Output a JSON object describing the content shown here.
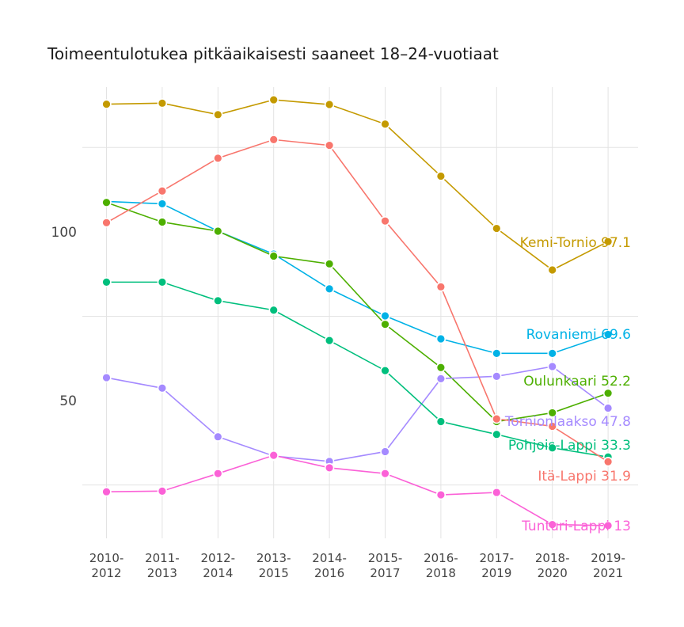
{
  "chart_data": {
    "type": "line",
    "title": "Toimeentulotukea pitkäaikaisesti saaneet 18–24-vuotiaat",
    "xlabel": "",
    "ylabel": "",
    "categories": [
      "2010-2012",
      "2011-2013",
      "2012-2014",
      "2013-2015",
      "2014-2016",
      "2015-2017",
      "2016-2018",
      "2017-2019",
      "2018-2020",
      "2019-2021"
    ],
    "x_tick_labels": [
      [
        "2010-",
        "2012"
      ],
      [
        "2011-",
        "2013"
      ],
      [
        "2012-",
        "2014"
      ],
      [
        "2013-",
        "2015"
      ],
      [
        "2014-",
        "2016"
      ],
      [
        "2015-",
        "2017"
      ],
      [
        "2016-",
        "2018"
      ],
      [
        "2017-",
        "2019"
      ],
      [
        "2018-",
        "2020"
      ],
      [
        "2019-2021"
      ]
    ],
    "y_ticks": [
      50,
      100
    ],
    "y_minor_gridlines": [
      25,
      75,
      125
    ],
    "ylim": [
      10,
      140
    ],
    "grid": true,
    "legend": "none",
    "series": [
      {
        "name": "Kemi-Tornio",
        "label": "Kemi-Tornio 97.1",
        "color": "#C49A00",
        "values": [
          137.8,
          138.1,
          134.7,
          139.1,
          137.7,
          131.9,
          116.5,
          101.0,
          88.7,
          97.1
        ]
      },
      {
        "name": "Rovaniemi",
        "label": "Rovaniemi 69.6",
        "color": "#00B2E6",
        "values": [
          109.0,
          108.3,
          100.2,
          93.4,
          83.1,
          75.1,
          68.3,
          64.0,
          64.0,
          69.6
        ]
      },
      {
        "name": "Oulunkaari",
        "label": "Oulunkaari 52.2",
        "color": "#4DAF00",
        "values": [
          108.7,
          102.9,
          100.2,
          92.8,
          90.5,
          72.6,
          59.8,
          43.8,
          46.4,
          52.2
        ]
      },
      {
        "name": "Tornionlaakso",
        "label": "Tornionlaakso 47.8",
        "color": "#A58AFF",
        "values": [
          56.8,
          53.7,
          39.3,
          33.6,
          32.0,
          34.9,
          56.5,
          57.2,
          60.1,
          47.8
        ]
      },
      {
        "name": "Pohjois-Lappi",
        "label": "Pohjois-Lappi 33.3",
        "color": "#00BF7D",
        "values": [
          85.1,
          85.1,
          79.6,
          76.8,
          67.8,
          58.9,
          43.8,
          40.0,
          36.0,
          33.3
        ]
      },
      {
        "name": "Itä-Lappi",
        "label": "Itä-Lappi 31.9",
        "color": "#F8766D",
        "values": [
          102.7,
          112.1,
          121.8,
          127.3,
          125.6,
          103.2,
          83.7,
          44.6,
          42.4,
          31.9
        ]
      },
      {
        "name": "Tunturi-Lappi",
        "label": "Tunturi-Lappi 13",
        "color": "#FB61D7",
        "values": [
          23.0,
          23.2,
          28.4,
          33.8,
          30.1,
          28.4,
          22.1,
          22.8,
          13.3,
          13.0
        ]
      }
    ]
  }
}
